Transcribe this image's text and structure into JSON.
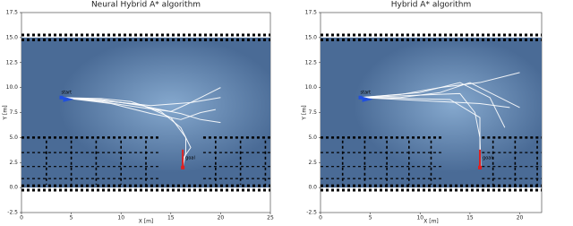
{
  "chart_data": [
    {
      "type": "line",
      "title": "Neural Hybrid A* algorithm",
      "xlabel": "X [m]",
      "ylabel": "Y [m]",
      "xlim": [
        0,
        25
      ],
      "ylim": [
        -2.5,
        17.5
      ],
      "xticks": [
        0,
        5,
        10,
        15,
        20,
        25
      ],
      "yticks": [
        -2.5,
        {
          "value": 0,
          "label": "0.0"
        },
        2.5,
        {
          "value": 5,
          "label": "5.0"
        },
        7.5,
        {
          "value": 10,
          "label": "10.0"
        },
        12.5,
        {
          "value": 15,
          "label": "15.0"
        },
        17.5
      ],
      "line_color": "#ffffff",
      "start": {
        "label": "start",
        "x": 4,
        "y": 9
      },
      "goal": {
        "label": "goal",
        "x": 16.2,
        "y": 2
      },
      "paths": [
        {
          "x": [
            4,
            8,
            12,
            15,
            17,
            19,
            20
          ],
          "y": [
            9,
            8.6,
            8,
            7.6,
            8.5,
            9.5,
            10
          ]
        },
        {
          "x": [
            4,
            8,
            12,
            16,
            18,
            20
          ],
          "y": [
            9,
            8.8,
            8.2,
            7.4,
            6.8,
            6.5
          ]
        },
        {
          "x": [
            4,
            8,
            12,
            15,
            16.5,
            16.5,
            16.2
          ],
          "y": [
            9,
            8.7,
            8.3,
            7,
            5,
            3.5,
            2
          ]
        },
        {
          "x": [
            4,
            9,
            13,
            16,
            18,
            19.5
          ],
          "y": [
            9,
            8.4,
            7.4,
            6.8,
            7.5,
            7.8
          ]
        },
        {
          "x": [
            4,
            8,
            11,
            14,
            16,
            17,
            16.3,
            16.2
          ],
          "y": [
            9,
            8.9,
            8.6,
            7.6,
            6,
            4,
            3,
            2
          ]
        },
        {
          "x": [
            4,
            9,
            13,
            17,
            20
          ],
          "y": [
            9,
            8.6,
            8.2,
            8.5,
            9
          ]
        }
      ]
    },
    {
      "type": "line",
      "title": "Hybrid A* algorithm",
      "xlabel": "X [m]",
      "ylabel": "Y [m]",
      "xlim": [
        0,
        22.2
      ],
      "ylim": [
        -2.5,
        17.5
      ],
      "xticks": [
        0,
        5,
        10,
        15,
        20
      ],
      "yticks": [
        -2.5,
        {
          "value": 0,
          "label": "0.0"
        },
        2.5,
        {
          "value": 5,
          "label": "5.0"
        },
        7.5,
        {
          "value": 10,
          "label": "10.0"
        },
        12.5,
        {
          "value": 15,
          "label": "15.0"
        },
        17.5
      ],
      "line_color": "#ffffff",
      "start": {
        "label": "start",
        "x": 4,
        "y": 9
      },
      "goal": {
        "label": "goal",
        "x": 16,
        "y": 2
      },
      "paths": [
        {
          "x": [
            4,
            8,
            12,
            16,
            18,
            20
          ],
          "y": [
            9,
            9.3,
            10,
            10.5,
            11,
            11.5
          ]
        },
        {
          "x": [
            4,
            8,
            12,
            15,
            18,
            20
          ],
          "y": [
            9,
            9,
            9.5,
            10.5,
            9,
            8
          ]
        },
        {
          "x": [
            4,
            9,
            13,
            16,
            16,
            16
          ],
          "y": [
            9,
            8.9,
            8.8,
            7,
            4,
            2
          ]
        },
        {
          "x": [
            4,
            8,
            12,
            16,
            19
          ],
          "y": [
            9,
            8.8,
            8.6,
            8.4,
            8
          ]
        },
        {
          "x": [
            4,
            10,
            14,
            17,
            18.5
          ],
          "y": [
            9,
            9.5,
            10.5,
            9,
            6
          ]
        },
        {
          "x": [
            4,
            9,
            14,
            15.5,
            16,
            16.1
          ],
          "y": [
            9,
            9.2,
            9.4,
            7.5,
            5,
            2
          ]
        }
      ]
    }
  ]
}
